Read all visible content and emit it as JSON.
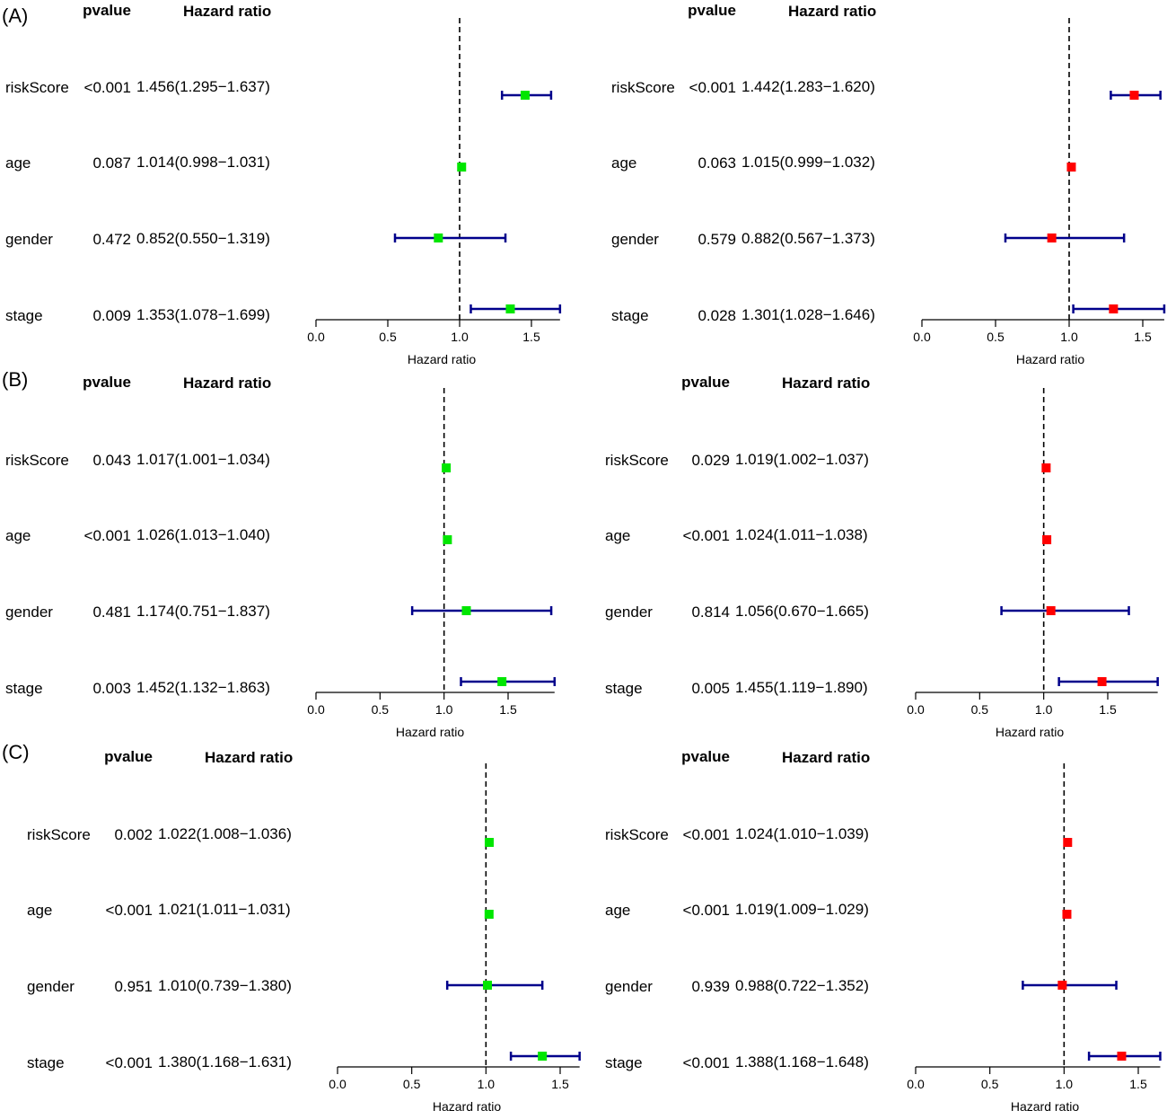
{
  "figure": {
    "panel_labels": [
      "(A)",
      "(B)",
      "(C)"
    ],
    "header_pvalue": "pvalue",
    "header_hr": "Hazard ratio",
    "xlabel": "Hazard ratio",
    "colors": {
      "train_marker": "#00e600",
      "test_marker": "#ff0000",
      "ci_line": "#00008b",
      "axis": "#000000"
    }
  },
  "chart_data": [
    {
      "type": "forest",
      "panel": "(A)",
      "position": "left",
      "marker_color": "#00e600",
      "xlabel": "Hazard ratio",
      "xticks": [
        0.0,
        0.5,
        1.0,
        1.5
      ],
      "tick_labels": [
        "0.0",
        "0.5",
        "1.0",
        "1.5"
      ],
      "xlim": [
        0,
        1.699
      ],
      "ref_line": 1,
      "rows": [
        {
          "label": "riskScore",
          "pvalue": "<0.001",
          "hr_text": "1.456(1.295−1.637)",
          "hr": 1.456,
          "lo": 1.295,
          "hi": 1.637
        },
        {
          "label": "age",
          "pvalue": "0.087",
          "hr_text": "1.014(0.998−1.031)",
          "hr": 1.014,
          "lo": 0.998,
          "hi": 1.031
        },
        {
          "label": "gender",
          "pvalue": "0.472",
          "hr_text": "0.852(0.550−1.319)",
          "hr": 0.852,
          "lo": 0.55,
          "hi": 1.319
        },
        {
          "label": "stage",
          "pvalue": "0.009",
          "hr_text": "1.353(1.078−1.699)",
          "hr": 1.353,
          "lo": 1.078,
          "hi": 1.699
        }
      ]
    },
    {
      "type": "forest",
      "panel": "(A)",
      "position": "right",
      "marker_color": "#ff0000",
      "xlabel": "Hazard ratio",
      "xticks": [
        0.0,
        0.5,
        1.0,
        1.5
      ],
      "tick_labels": [
        "0.0",
        "0.5",
        "1.0",
        "1.5"
      ],
      "xlim": [
        0,
        1.646
      ],
      "ref_line": 1,
      "rows": [
        {
          "label": "riskScore",
          "pvalue": "<0.001",
          "hr_text": "1.442(1.283−1.620)",
          "hr": 1.442,
          "lo": 1.283,
          "hi": 1.62
        },
        {
          "label": "age",
          "pvalue": "0.063",
          "hr_text": "1.015(0.999−1.032)",
          "hr": 1.015,
          "lo": 0.999,
          "hi": 1.032
        },
        {
          "label": "gender",
          "pvalue": "0.579",
          "hr_text": "0.882(0.567−1.373)",
          "hr": 0.882,
          "lo": 0.567,
          "hi": 1.373
        },
        {
          "label": "stage",
          "pvalue": "0.028",
          "hr_text": "1.301(1.028−1.646)",
          "hr": 1.301,
          "lo": 1.028,
          "hi": 1.646
        }
      ]
    },
    {
      "type": "forest",
      "panel": "(B)",
      "position": "left",
      "marker_color": "#00e600",
      "xlabel": "Hazard ratio",
      "xticks": [
        0.0,
        0.5,
        1.0,
        1.5
      ],
      "tick_labels": [
        "0.0",
        "0.5",
        "1.0",
        "1.5"
      ],
      "xlim": [
        0,
        1.863
      ],
      "ref_line": 1,
      "rows": [
        {
          "label": "riskScore",
          "pvalue": "0.043",
          "hr_text": "1.017(1.001−1.034)",
          "hr": 1.017,
          "lo": 1.001,
          "hi": 1.034
        },
        {
          "label": "age",
          "pvalue": "<0.001",
          "hr_text": "1.026(1.013−1.040)",
          "hr": 1.026,
          "lo": 1.013,
          "hi": 1.04
        },
        {
          "label": "gender",
          "pvalue": "0.481",
          "hr_text": "1.174(0.751−1.837)",
          "hr": 1.174,
          "lo": 0.751,
          "hi": 1.837
        },
        {
          "label": "stage",
          "pvalue": "0.003",
          "hr_text": "1.452(1.132−1.863)",
          "hr": 1.452,
          "lo": 1.132,
          "hi": 1.863
        }
      ]
    },
    {
      "type": "forest",
      "panel": "(B)",
      "position": "right",
      "marker_color": "#ff0000",
      "xlabel": "Hazard ratio",
      "xticks": [
        0.0,
        0.5,
        1.0,
        1.5
      ],
      "tick_labels": [
        "0.0",
        "0.5",
        "1.0",
        "1.5"
      ],
      "xlim": [
        0,
        1.89
      ],
      "ref_line": 1,
      "rows": [
        {
          "label": "riskScore",
          "pvalue": "0.029",
          "hr_text": "1.019(1.002−1.037)",
          "hr": 1.019,
          "lo": 1.002,
          "hi": 1.037
        },
        {
          "label": "age",
          "pvalue": "<0.001",
          "hr_text": "1.024(1.011−1.038)",
          "hr": 1.024,
          "lo": 1.011,
          "hi": 1.038
        },
        {
          "label": "gender",
          "pvalue": "0.814",
          "hr_text": "1.056(0.670−1.665)",
          "hr": 1.056,
          "lo": 0.67,
          "hi": 1.665
        },
        {
          "label": "stage",
          "pvalue": "0.005",
          "hr_text": "1.455(1.119−1.890)",
          "hr": 1.455,
          "lo": 1.119,
          "hi": 1.89
        }
      ]
    },
    {
      "type": "forest",
      "panel": "(C)",
      "position": "left",
      "marker_color": "#00e600",
      "xlabel": "Hazard ratio",
      "xticks": [
        0.0,
        0.5,
        1.0,
        1.5
      ],
      "tick_labels": [
        "0.0",
        "0.5",
        "1.0",
        "1.5"
      ],
      "xlim": [
        0,
        1.631
      ],
      "ref_line": 1,
      "rows": [
        {
          "label": "riskScore",
          "pvalue": "0.002",
          "hr_text": "1.022(1.008−1.036)",
          "hr": 1.022,
          "lo": 1.008,
          "hi": 1.036
        },
        {
          "label": "age",
          "pvalue": "<0.001",
          "hr_text": "1.021(1.011−1.031)",
          "hr": 1.021,
          "lo": 1.011,
          "hi": 1.031
        },
        {
          "label": "gender",
          "pvalue": "0.951",
          "hr_text": "1.010(0.739−1.380)",
          "hr": 1.01,
          "lo": 0.739,
          "hi": 1.38
        },
        {
          "label": "stage",
          "pvalue": "<0.001",
          "hr_text": "1.380(1.168−1.631)",
          "hr": 1.38,
          "lo": 1.168,
          "hi": 1.631
        }
      ]
    },
    {
      "type": "forest",
      "panel": "(C)",
      "position": "right",
      "marker_color": "#ff0000",
      "xlabel": "Hazard ratio",
      "xticks": [
        0.0,
        0.5,
        1.0,
        1.5
      ],
      "tick_labels": [
        "0.0",
        "0.5",
        "1.0",
        "1.5"
      ],
      "xlim": [
        0,
        1.648
      ],
      "ref_line": 1,
      "rows": [
        {
          "label": "riskScore",
          "pvalue": "<0.001",
          "hr_text": "1.024(1.010−1.039)",
          "hr": 1.024,
          "lo": 1.01,
          "hi": 1.039
        },
        {
          "label": "age",
          "pvalue": "<0.001",
          "hr_text": "1.019(1.009−1.029)",
          "hr": 1.019,
          "lo": 1.009,
          "hi": 1.029
        },
        {
          "label": "gender",
          "pvalue": "0.939",
          "hr_text": "0.988(0.722−1.352)",
          "hr": 0.988,
          "lo": 0.722,
          "hi": 1.352
        },
        {
          "label": "stage",
          "pvalue": "<0.001",
          "hr_text": "1.388(1.168−1.648)",
          "hr": 1.388,
          "lo": 1.168,
          "hi": 1.648
        }
      ]
    }
  ]
}
